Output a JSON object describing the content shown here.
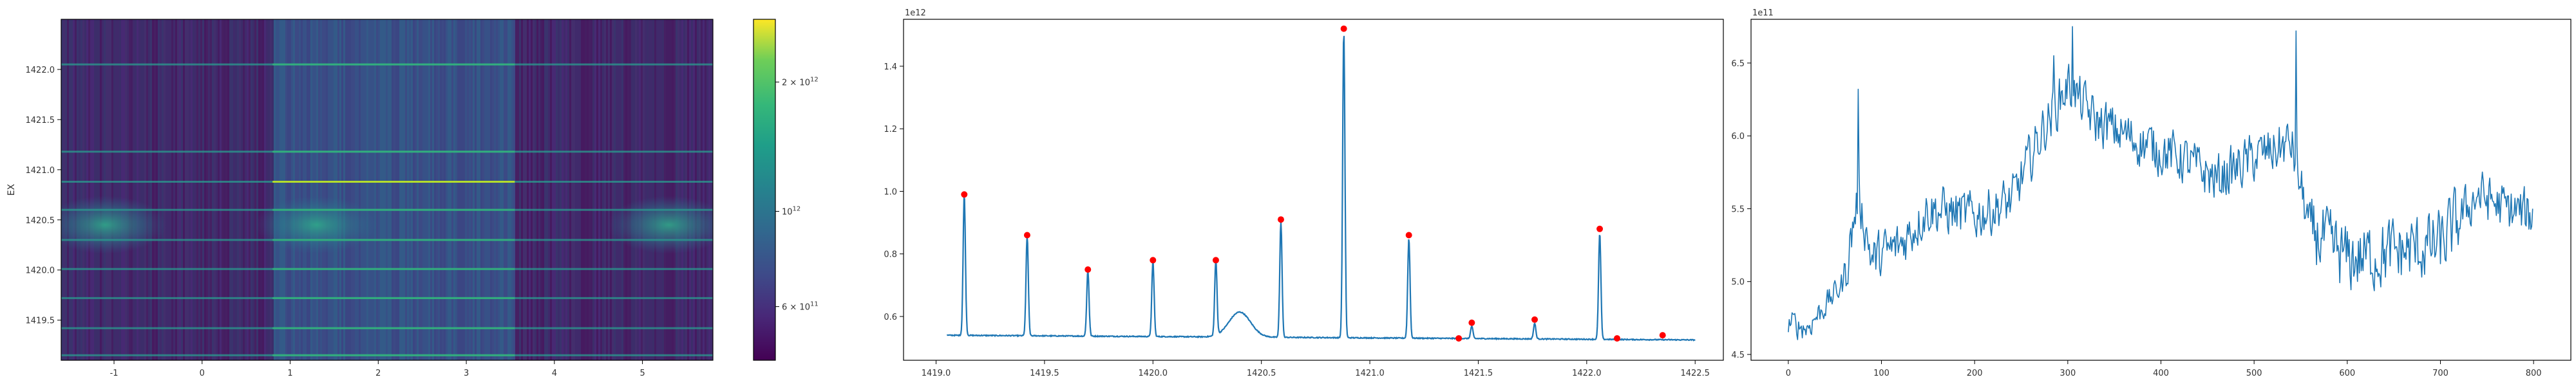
{
  "chart_data": [
    {
      "type": "heatmap",
      "title": "",
      "xlabel": "",
      "ylabel": "EX",
      "xlim": [
        -1.6,
        5.8
      ],
      "ylim": [
        1419.1,
        1422.5
      ],
      "xticks": [
        "-1",
        "0",
        "1",
        "2",
        "3",
        "4",
        "5"
      ],
      "xtick_values": [
        -1,
        0,
        1,
        2,
        3,
        4,
        5
      ],
      "yticks": [
        "1419.5",
        "1420.0",
        "1420.5",
        "1421.0",
        "1421.5",
        "1422.0"
      ],
      "ytick_values": [
        1419.5,
        1420.0,
        1420.5,
        1421.0,
        1421.5,
        1422.0
      ],
      "colorscale": "viridis",
      "colorbar_scale": "log",
      "colorbar_range": [
        450000000000.0,
        2800000000000.0
      ],
      "colorbar_ticks": [
        {
          "base": "6 × 10",
          "exp": "11",
          "value": 600000000000.0
        },
        {
          "base": "10",
          "exp": "12",
          "value": 1000000000000.0
        },
        {
          "base": "2 × 10",
          "exp": "12",
          "value": 2000000000000.0
        }
      ],
      "bright_rows": [
        1419.15,
        1419.42,
        1419.72,
        1420.01,
        1420.3,
        1420.6,
        1420.88,
        1421.18,
        1422.05
      ],
      "bright_columns": [
        0.8,
        3.55
      ],
      "colors": {
        "low": "#440154",
        "mid": "#2f6b8e",
        "high": "#fde725"
      }
    },
    {
      "type": "line",
      "title": "",
      "xlabel": "",
      "ylabel": "",
      "offset_text": "1e12",
      "xlim": [
        1418.85,
        1422.63
      ],
      "ylim": [
        0.46,
        1.55
      ],
      "xticks": [
        "1419.0",
        "1419.5",
        "1420.0",
        "1420.5",
        "1421.0",
        "1421.5",
        "1422.0",
        "1422.5"
      ],
      "xtick_values": [
        1419.0,
        1419.5,
        1420.0,
        1420.5,
        1421.0,
        1421.5,
        1422.0,
        1422.5
      ],
      "yticks": [
        "0.6",
        "0.8",
        "1.0",
        "1.2",
        "1.4"
      ],
      "ytick_values": [
        0.6,
        0.8,
        1.0,
        1.2,
        1.4
      ],
      "baseline": 0.54,
      "peaks_x": [
        1419.13,
        1419.42,
        1419.7,
        1420.0,
        1420.29,
        1420.59,
        1420.88,
        1421.18,
        1421.41,
        1421.47,
        1421.76,
        1422.06,
        1422.14,
        1422.35
      ],
      "peaks_y": [
        0.99,
        0.86,
        0.75,
        0.78,
        0.78,
        0.91,
        1.52,
        0.86,
        0.53,
        0.58,
        0.59,
        0.88,
        0.53,
        0.54
      ],
      "hump": {
        "center": 1420.4,
        "height": 0.62
      },
      "line_color": "#1f77b4",
      "marker_color": "#ff0000"
    },
    {
      "type": "line",
      "title": "",
      "xlabel": "",
      "ylabel": "",
      "offset_text": "1e11",
      "xlim": [
        -40,
        840
      ],
      "ylim": [
        4.46,
        6.8
      ],
      "xticks": [
        "0",
        "100",
        "200",
        "300",
        "400",
        "500",
        "600",
        "700",
        "800"
      ],
      "xtick_values": [
        0,
        100,
        200,
        300,
        400,
        500,
        600,
        700,
        800
      ],
      "yticks": [
        "4.5",
        "5.0",
        "5.5",
        "6.0",
        "6.5"
      ],
      "ytick_values": [
        4.5,
        5.0,
        5.5,
        6.0,
        6.5
      ],
      "n_points": 800,
      "trend_x": [
        0,
        20,
        60,
        75,
        90,
        120,
        150,
        200,
        240,
        270,
        300,
        330,
        380,
        420,
        460,
        500,
        540,
        560,
        600,
        650,
        700,
        740,
        770,
        800
      ],
      "trend_y": [
        4.72,
        4.68,
        5.0,
        5.6,
        5.15,
        5.25,
        5.5,
        5.45,
        5.55,
        6.0,
        6.35,
        6.1,
        5.95,
        5.85,
        5.7,
        5.85,
        5.95,
        5.35,
        5.15,
        5.2,
        5.25,
        5.6,
        5.5,
        5.45
      ],
      "spikes": [
        {
          "x": 75,
          "y": 6.32
        },
        {
          "x": 285,
          "y": 6.55
        },
        {
          "x": 305,
          "y": 6.75
        },
        {
          "x": 545,
          "y": 6.72
        }
      ],
      "line_color": "#1f77b4"
    }
  ]
}
